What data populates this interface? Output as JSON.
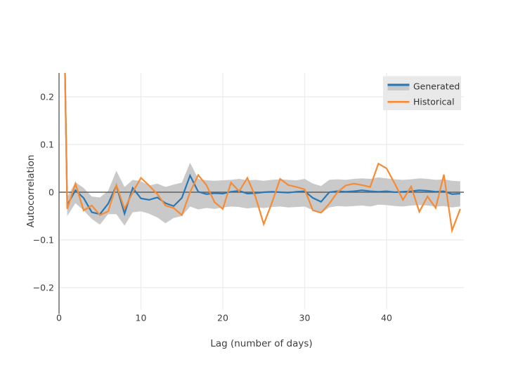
{
  "figure": {
    "title": "",
    "y_axis_title": "Autocorrelation",
    "x_axis_title": "Lag (number of days)",
    "legend": {
      "items": [
        {
          "label": "Generated",
          "swatch": "band-with-line"
        },
        {
          "label": "Historical",
          "swatch": "line"
        }
      ]
    }
  },
  "colors": {
    "generated": "#2878b8",
    "historical": "#f78b34",
    "band": "#c9c9c9",
    "grid": "#ebebeb",
    "zeroline": "#606060",
    "legend_bg": "#e9e9e9",
    "text": "#3d3d3d"
  },
  "chart_data": {
    "type": "line",
    "title": "",
    "xlabel": "Lag (number of days)",
    "ylabel": "Autocorrelation",
    "xlim": [
      0,
      49.44
    ],
    "ylim": [
      -0.246,
      0.25
    ],
    "grid": true,
    "legend_position": "top-right-inside",
    "x_ticks": [
      0,
      10,
      20,
      30,
      40
    ],
    "x_tick_labels": [
      "0",
      "10",
      "20",
      "30",
      "40"
    ],
    "y_ticks": [
      0.2,
      0.1,
      0,
      -0.1,
      -0.2
    ],
    "y_tick_labels": [
      "0.2",
      "0.1",
      "0",
      "−0.1",
      "−0.2"
    ],
    "x": [
      0,
      1,
      2,
      3,
      4,
      5,
      6,
      7,
      8,
      9,
      10,
      11,
      12,
      13,
      14,
      15,
      16,
      17,
      18,
      19,
      20,
      21,
      22,
      23,
      24,
      25,
      26,
      27,
      28,
      29,
      30,
      31,
      32,
      33,
      34,
      35,
      36,
      37,
      38,
      39,
      40,
      41,
      42,
      43,
      44,
      45,
      46,
      47,
      48,
      49
    ],
    "series": [
      {
        "name": "Generated",
        "values": [
          1.0,
          -0.027,
          0.004,
          -0.012,
          -0.042,
          -0.046,
          -0.024,
          0.014,
          -0.045,
          0.009,
          -0.013,
          -0.016,
          -0.011,
          -0.023,
          -0.029,
          -0.012,
          0.035,
          0.001,
          -0.004,
          -0.002,
          -0.003,
          0.001,
          0.003,
          -0.003,
          -0.002,
          0.0,
          0.001,
          0.0,
          -0.001,
          0.001,
          0.002,
          -0.012,
          -0.02,
          0.0,
          0.002,
          0.001,
          0.002,
          0.004,
          0.002,
          0.001,
          0.002,
          0.0,
          0.001,
          0.002,
          0.004,
          0.003,
          0.001,
          0.002,
          -0.004,
          -0.003
        ]
      },
      {
        "name": "Historical",
        "values": [
          1.0,
          -0.035,
          0.018,
          -0.038,
          -0.028,
          -0.048,
          -0.04,
          0.015,
          -0.035,
          0.0,
          0.03,
          0.014,
          -0.004,
          -0.028,
          -0.033,
          -0.048,
          0.0,
          0.036,
          0.015,
          -0.021,
          -0.035,
          0.02,
          0.002,
          0.03,
          -0.01,
          -0.067,
          -0.022,
          0.028,
          0.015,
          0.011,
          0.006,
          -0.038,
          -0.043,
          -0.024,
          0.0,
          0.014,
          0.018,
          0.015,
          0.011,
          0.06,
          0.05,
          0.018,
          -0.016,
          0.012,
          -0.041,
          -0.009,
          -0.033,
          0.037,
          -0.08,
          -0.035
        ]
      }
    ],
    "band": {
      "name": "Generated confidence band",
      "upper": [
        1.0,
        -0.01,
        0.021,
        0.009,
        -0.009,
        -0.011,
        0.003,
        0.045,
        0.011,
        0.026,
        0.023,
        0.014,
        0.018,
        0.011,
        0.016,
        0.02,
        0.062,
        0.028,
        0.025,
        0.024,
        0.025,
        0.026,
        0.028,
        0.025,
        0.026,
        0.024,
        0.026,
        0.027,
        0.026,
        0.025,
        0.028,
        0.018,
        0.013,
        0.026,
        0.027,
        0.026,
        0.028,
        0.029,
        0.028,
        0.031,
        0.029,
        0.027,
        0.026,
        0.027,
        0.029,
        0.028,
        0.026,
        0.027,
        0.024,
        0.023
      ],
      "lower": [
        1.0,
        -0.05,
        -0.023,
        -0.038,
        -0.056,
        -0.068,
        -0.046,
        -0.046,
        -0.07,
        -0.042,
        -0.04,
        -0.045,
        -0.053,
        -0.065,
        -0.054,
        -0.05,
        -0.03,
        -0.036,
        -0.033,
        -0.035,
        -0.032,
        -0.03,
        -0.031,
        -0.034,
        -0.032,
        -0.033,
        -0.031,
        -0.03,
        -0.032,
        -0.031,
        -0.03,
        -0.038,
        -0.044,
        -0.032,
        -0.029,
        -0.03,
        -0.029,
        -0.028,
        -0.03,
        -0.026,
        -0.027,
        -0.029,
        -0.03,
        -0.028,
        -0.027,
        -0.028,
        -0.03,
        -0.029,
        -0.032,
        -0.03
      ]
    }
  }
}
